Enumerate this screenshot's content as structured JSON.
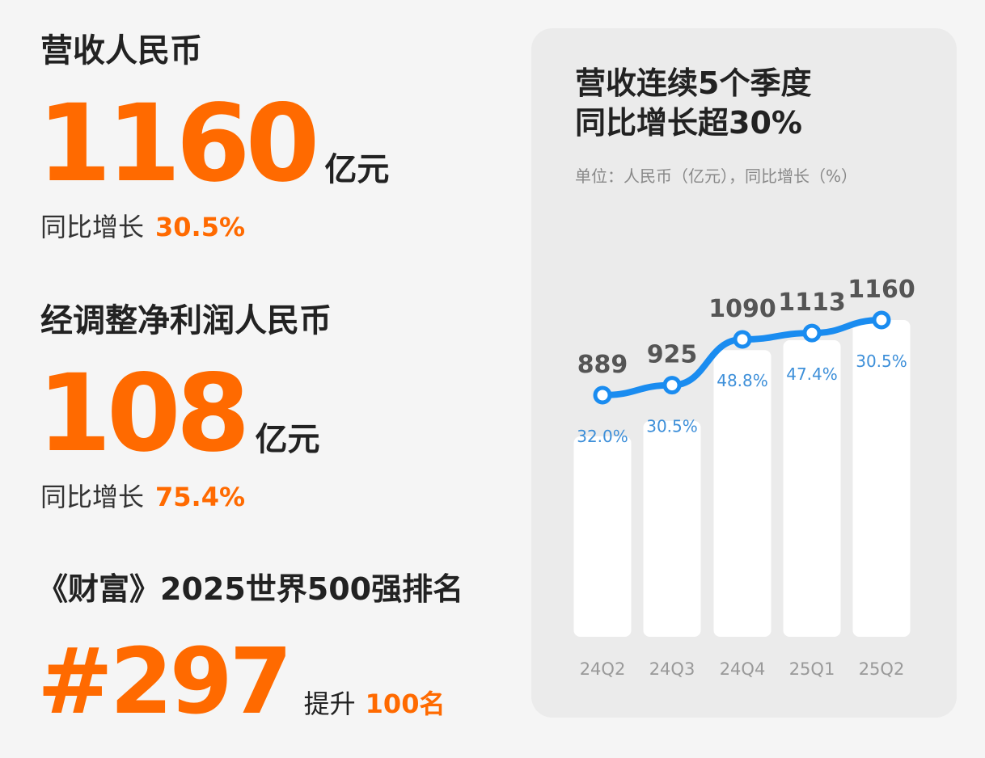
{
  "left": {
    "revenue": {
      "label": "营收人民币",
      "value": "1160",
      "unit": "亿元",
      "growth_label": "同比增长",
      "growth_value": "30.5%"
    },
    "profit": {
      "label": "经调整净利润人民币",
      "value": "108",
      "unit": "亿元",
      "growth_label": "同比增长",
      "growth_value": "75.4%"
    },
    "fortune": {
      "label": "《财富》2025世界500强排名",
      "rank": "#297",
      "up_label": "提升",
      "up_value": "100名"
    }
  },
  "card": {
    "title_line1": "营收连续5个季度",
    "title_line2": "同比增长超30%",
    "subtitle": "单位：人民币（亿元），同比增长（%）"
  },
  "colors": {
    "accent": "#ff6a00",
    "line": "#1a8cf0",
    "bar": "#ffffff"
  },
  "chart_data": {
    "type": "bar",
    "categories": [
      "24Q2",
      "24Q3",
      "24Q4",
      "25Q1",
      "25Q2"
    ],
    "series": [
      {
        "name": "",
        "values": [
          889,
          925,
          1090,
          1113,
          1160
        ]
      },
      {
        "name": "",
        "values": [
          32.0,
          30.5,
          48.8,
          47.4,
          30.5
        ]
      }
    ],
    "value_labels": [
      "889",
      "925",
      "1090",
      "1113",
      "1160"
    ],
    "growth_labels": [
      "32.0%",
      "30.5%",
      "48.8%",
      "47.4%",
      "30.5%"
    ],
    "line_overlay": true
  }
}
